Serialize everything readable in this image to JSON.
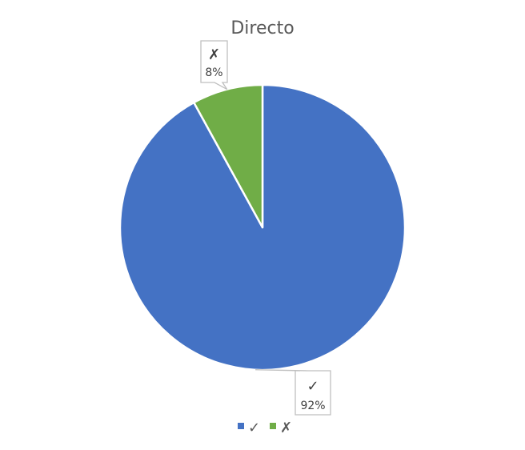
{
  "chart_data": {
    "type": "pie",
    "title": "Directo",
    "categories": [
      "✓",
      "✗"
    ],
    "values": [
      92,
      8
    ],
    "value_labels": [
      "92%",
      "8%"
    ],
    "colors": [
      "#4472c4",
      "#70ad47"
    ],
    "legend": "bottom"
  }
}
